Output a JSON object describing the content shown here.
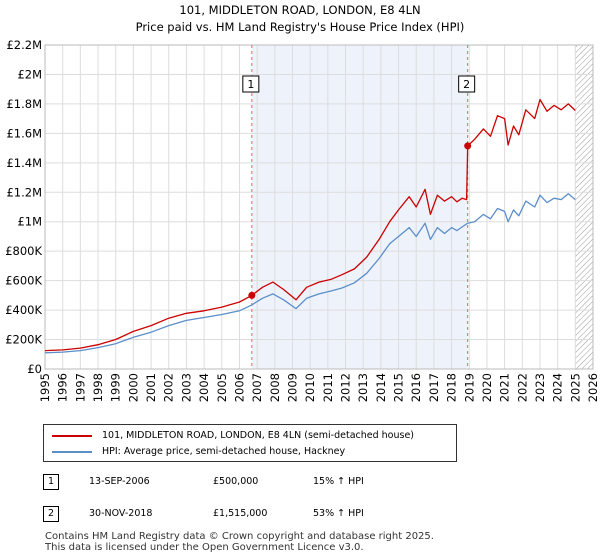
{
  "chart_data": {
    "type": "line",
    "title": "101, MIDDLETON ROAD, LONDON, E8 4LN",
    "subtitle": "Price paid vs. HM Land Registry's House Price Index (HPI)",
    "x_ticks": [
      "1995",
      "1996",
      "1997",
      "1998",
      "1999",
      "2000",
      "2001",
      "2002",
      "2003",
      "2004",
      "2005",
      "2006",
      "2007",
      "2008",
      "2009",
      "2010",
      "2011",
      "2012",
      "2013",
      "2014",
      "2015",
      "2016",
      "2017",
      "2018",
      "2019",
      "2020",
      "2021",
      "2022",
      "2023",
      "2024",
      "2025",
      "2026"
    ],
    "y_tick_labels": [
      "£0",
      "£200K",
      "£400K",
      "£600K",
      "£800K",
      "£1M",
      "£1.2M",
      "£1.4M",
      "£1.6M",
      "£1.8M",
      "£2M",
      "£2.2M"
    ],
    "y_tick_values": [
      0,
      200000,
      400000,
      600000,
      800000,
      1000000,
      1200000,
      1400000,
      1600000,
      1800000,
      2000000,
      2200000
    ],
    "xlim": [
      1995,
      2026
    ],
    "ylim": [
      0,
      2200000
    ],
    "series": [
      {
        "name": "101, MIDDLETON ROAD, LONDON, E8 4LN (semi-detached house)",
        "color": "#cc0000",
        "points": [
          [
            1995.0,
            125000
          ],
          [
            1996.0,
            130000
          ],
          [
            1997.0,
            142000
          ],
          [
            1998.0,
            165000
          ],
          [
            1999.0,
            200000
          ],
          [
            2000.0,
            255000
          ],
          [
            2001.0,
            295000
          ],
          [
            2002.0,
            345000
          ],
          [
            2003.0,
            378000
          ],
          [
            2004.0,
            395000
          ],
          [
            2005.0,
            420000
          ],
          [
            2006.0,
            455000
          ],
          [
            2006.7,
            500000
          ],
          [
            2007.3,
            555000
          ],
          [
            2007.9,
            590000
          ],
          [
            2008.5,
            540000
          ],
          [
            2009.2,
            470000
          ],
          [
            2009.8,
            555000
          ],
          [
            2010.5,
            590000
          ],
          [
            2011.2,
            610000
          ],
          [
            2011.8,
            640000
          ],
          [
            2012.5,
            680000
          ],
          [
            2013.2,
            760000
          ],
          [
            2013.9,
            880000
          ],
          [
            2014.5,
            1000000
          ],
          [
            2015.0,
            1080000
          ],
          [
            2015.6,
            1170000
          ],
          [
            2016.0,
            1100000
          ],
          [
            2016.5,
            1220000
          ],
          [
            2016.8,
            1050000
          ],
          [
            2017.2,
            1180000
          ],
          [
            2017.6,
            1140000
          ],
          [
            2018.0,
            1170000
          ],
          [
            2018.3,
            1135000
          ],
          [
            2018.6,
            1160000
          ],
          [
            2018.85,
            1150000
          ],
          [
            2018.91,
            1515000
          ],
          [
            2019.3,
            1560000
          ],
          [
            2019.8,
            1630000
          ],
          [
            2020.2,
            1580000
          ],
          [
            2020.6,
            1720000
          ],
          [
            2021.0,
            1700000
          ],
          [
            2021.2,
            1520000
          ],
          [
            2021.5,
            1650000
          ],
          [
            2021.8,
            1590000
          ],
          [
            2022.2,
            1760000
          ],
          [
            2022.7,
            1700000
          ],
          [
            2023.0,
            1830000
          ],
          [
            2023.4,
            1750000
          ],
          [
            2023.8,
            1790000
          ],
          [
            2024.2,
            1760000
          ],
          [
            2024.6,
            1800000
          ],
          [
            2025.0,
            1755000
          ]
        ]
      },
      {
        "name": "HPI: Average price, semi-detached house, Hackney",
        "color": "#5b8fc9",
        "points": [
          [
            1995.0,
            110000
          ],
          [
            1996.0,
            115000
          ],
          [
            1997.0,
            125000
          ],
          [
            1998.0,
            145000
          ],
          [
            1999.0,
            172000
          ],
          [
            2000.0,
            215000
          ],
          [
            2001.0,
            250000
          ],
          [
            2002.0,
            295000
          ],
          [
            2003.0,
            330000
          ],
          [
            2004.0,
            350000
          ],
          [
            2005.0,
            370000
          ],
          [
            2006.0,
            395000
          ],
          [
            2006.7,
            435000
          ],
          [
            2007.3,
            480000
          ],
          [
            2007.9,
            510000
          ],
          [
            2008.5,
            470000
          ],
          [
            2009.2,
            410000
          ],
          [
            2009.8,
            480000
          ],
          [
            2010.5,
            510000
          ],
          [
            2011.2,
            530000
          ],
          [
            2011.8,
            550000
          ],
          [
            2012.5,
            585000
          ],
          [
            2013.2,
            650000
          ],
          [
            2013.9,
            750000
          ],
          [
            2014.5,
            850000
          ],
          [
            2015.0,
            900000
          ],
          [
            2015.6,
            960000
          ],
          [
            2016.0,
            900000
          ],
          [
            2016.5,
            990000
          ],
          [
            2016.8,
            880000
          ],
          [
            2017.2,
            960000
          ],
          [
            2017.6,
            920000
          ],
          [
            2018.0,
            960000
          ],
          [
            2018.3,
            940000
          ],
          [
            2018.6,
            965000
          ],
          [
            2018.91,
            990000
          ],
          [
            2019.3,
            1000000
          ],
          [
            2019.8,
            1050000
          ],
          [
            2020.2,
            1020000
          ],
          [
            2020.6,
            1090000
          ],
          [
            2021.0,
            1070000
          ],
          [
            2021.2,
            1000000
          ],
          [
            2021.5,
            1080000
          ],
          [
            2021.8,
            1040000
          ],
          [
            2022.2,
            1140000
          ],
          [
            2022.7,
            1100000
          ],
          [
            2023.0,
            1180000
          ],
          [
            2023.4,
            1130000
          ],
          [
            2023.8,
            1160000
          ],
          [
            2024.2,
            1150000
          ],
          [
            2024.6,
            1190000
          ],
          [
            2025.0,
            1150000
          ]
        ]
      }
    ],
    "markers": [
      {
        "label": "1",
        "date": "13-SEP-2006",
        "x": 2006.7,
        "value": 500000
      },
      {
        "label": "2",
        "date": "30-NOV-2018",
        "x": 2018.91,
        "value": 1515000
      }
    ],
    "shaded_period": [
      2006.7,
      2018.91
    ],
    "hatched_from": 2025.0,
    "grid": true
  },
  "legend": {
    "property_label": "101, MIDDLETON ROAD, LONDON, E8 4LN (semi-detached house)",
    "hpi_label": "HPI: Average price, semi-detached house, Hackney"
  },
  "transactions": [
    {
      "num": "1",
      "date": "13-SEP-2006",
      "price": "£500,000",
      "hpi": "15% ↑ HPI"
    },
    {
      "num": "2",
      "date": "30-NOV-2018",
      "price": "£1,515,000",
      "hpi": "53% ↑ HPI"
    }
  ],
  "footer": {
    "line1": "Contains HM Land Registry data © Crown copyright and database right 2025.",
    "line2": "This data is licensed under the Open Government Licence v3.0."
  }
}
